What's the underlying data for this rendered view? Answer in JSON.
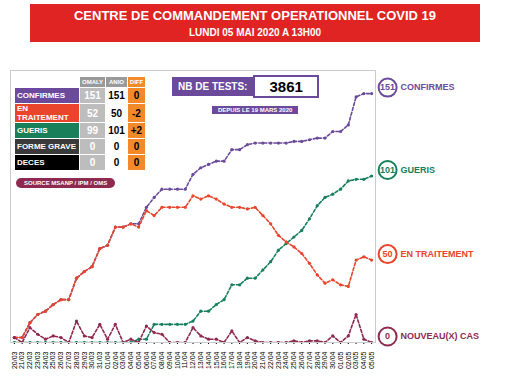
{
  "chart_data": {
    "type": "line",
    "title": "CENTRE DE COMMANDEMENT OPERATIONNEL COVID 19",
    "subtitle": "LUNDI 05 MAI 2020 A 13H00",
    "x": [
      "20/03",
      "21/03",
      "22/03",
      "23/03",
      "24/03",
      "25/03",
      "26/03",
      "27/03",
      "28/03",
      "29/03",
      "30/03",
      "31/03",
      "01/04",
      "02/04",
      "03/04",
      "04/04",
      "05/04",
      "06/04",
      "07/04",
      "08/04",
      "09/04",
      "10/04",
      "11/04",
      "12/04",
      "13/04",
      "14/04",
      "15/04",
      "16/04",
      "17/04",
      "18/04",
      "19/04",
      "20/04",
      "21/04",
      "22/04",
      "23/04",
      "24/04",
      "25/04",
      "26/04",
      "27/04",
      "28/04",
      "29/04",
      "30/04",
      "01/05",
      "02/05",
      "03/05",
      "04/05",
      "05/05"
    ],
    "series": [
      {
        "name": "CONFIRMES",
        "color": "#6b4a9b",
        "marker": "circle",
        "line_style": "dotted",
        "values": [
          3,
          3,
          12,
          17,
          19,
          23,
          26,
          26,
          39,
          43,
          46,
          57,
          59,
          70,
          70,
          72,
          72,
          82,
          88,
          93,
          93,
          93,
          93,
          102,
          106,
          108,
          110,
          110,
          117,
          117,
          120,
          121,
          121,
          121,
          121,
          121,
          122,
          122,
          123,
          124,
          124,
          128,
          128,
          132,
          149,
          151,
          151
        ]
      },
      {
        "name": "GUERIS",
        "color": "#17805a",
        "marker": "circle",
        "line_style": "dotted",
        "values": [
          0,
          0,
          0,
          0,
          0,
          0,
          0,
          0,
          0,
          0,
          0,
          0,
          0,
          0,
          0,
          0,
          2,
          2,
          11,
          11,
          11,
          11,
          11,
          13,
          19,
          19,
          23,
          26,
          35,
          35,
          39,
          39,
          44,
          49,
          56,
          60,
          64,
          68,
          75,
          83,
          88,
          90,
          93,
          98,
          99,
          99,
          101
        ]
      },
      {
        "name": "EN TRAITEMENT",
        "color": "#e8452c",
        "marker": "circle",
        "line_style": "dotted",
        "values": [
          3,
          3,
          12,
          17,
          19,
          23,
          26,
          26,
          39,
          43,
          46,
          57,
          59,
          70,
          70,
          72,
          70,
          80,
          77,
          82,
          82,
          82,
          82,
          89,
          87,
          89,
          87,
          84,
          82,
          82,
          81,
          82,
          77,
          72,
          65,
          61,
          58,
          54,
          48,
          41,
          36,
          38,
          35,
          34,
          50,
          52,
          50
        ]
      },
      {
        "name": "NOUVEAU(X) CAS",
        "color": "#8e2a4f",
        "marker": "circle",
        "line_style": "dotted",
        "values": [
          3,
          0,
          9,
          5,
          2,
          4,
          3,
          0,
          13,
          4,
          3,
          11,
          2,
          11,
          0,
          2,
          0,
          10,
          6,
          5,
          0,
          0,
          0,
          9,
          4,
          2,
          2,
          0,
          7,
          0,
          3,
          1,
          0,
          0,
          0,
          0,
          1,
          0,
          1,
          1,
          0,
          4,
          0,
          4,
          17,
          2,
          0
        ]
      }
    ],
    "ylim": [
      0,
      165
    ],
    "tick_labels": "x"
  },
  "table": {
    "columns": [
      "OMALY",
      "ANIO",
      "DIFF"
    ],
    "rows": [
      {
        "label": "CONFIRMES",
        "color": "#6b4a9b",
        "cells": [
          "151",
          "151",
          "0"
        ]
      },
      {
        "label": "EN TRAITEMENT",
        "color": "#e8452c",
        "cells": [
          "52",
          "50",
          "-2"
        ]
      },
      {
        "label": "GUERIS",
        "color": "#17805a",
        "cells": [
          "99",
          "101",
          "+2"
        ]
      },
      {
        "label": "FORME GRAVE",
        "color": "#3a3a3a",
        "cells": [
          "0",
          "0",
          "0"
        ]
      },
      {
        "label": "DECES",
        "color": "#000000",
        "cells": [
          "0",
          "0",
          "0"
        ]
      }
    ]
  },
  "source": "SOURCE MSANP / IPM / OMS",
  "tests": {
    "label": "NB DE TESTS:",
    "value": "3861",
    "since": "DEPUIS LE 19 MARS 2020"
  }
}
